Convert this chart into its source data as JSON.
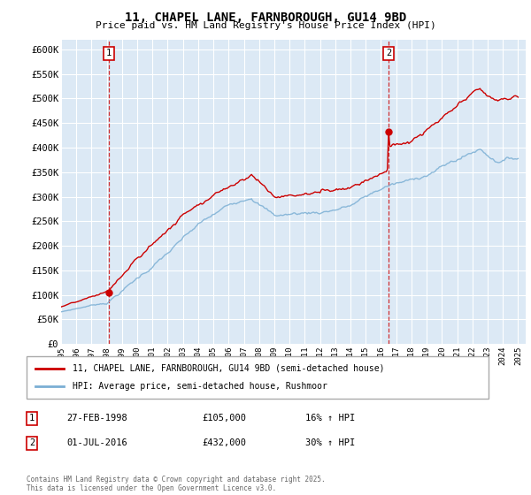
{
  "title": "11, CHAPEL LANE, FARNBOROUGH, GU14 9BD",
  "subtitle": "Price paid vs. HM Land Registry's House Price Index (HPI)",
  "ylabel_ticks": [
    "£0",
    "£50K",
    "£100K",
    "£150K",
    "£200K",
    "£250K",
    "£300K",
    "£350K",
    "£400K",
    "£450K",
    "£500K",
    "£550K",
    "£600K"
  ],
  "ytick_vals": [
    0,
    50000,
    100000,
    150000,
    200000,
    250000,
    300000,
    350000,
    400000,
    450000,
    500000,
    550000,
    600000
  ],
  "ylim": [
    0,
    620000
  ],
  "xlim_start": 1995.0,
  "xlim_end": 2025.5,
  "fig_bg_color": "#ffffff",
  "plot_bg_color": "#dce9f5",
  "grid_color": "#ffffff",
  "red_line_color": "#cc0000",
  "blue_line_color": "#7bafd4",
  "marker1_x": 1998.15,
  "marker1_y": 105000,
  "marker2_x": 2016.5,
  "marker2_y": 432000,
  "marker1_label": "1",
  "marker2_label": "2",
  "marker1_date": "27-FEB-1998",
  "marker1_price": "£105,000",
  "marker1_hpi": "16% ↑ HPI",
  "marker2_date": "01-JUL-2016",
  "marker2_price": "£432,000",
  "marker2_hpi": "30% ↑ HPI",
  "legend_line1": "11, CHAPEL LANE, FARNBOROUGH, GU14 9BD (semi-detached house)",
  "legend_line2": "HPI: Average price, semi-detached house, Rushmoor",
  "footer": "Contains HM Land Registry data © Crown copyright and database right 2025.\nThis data is licensed under the Open Government Licence v3.0.",
  "tick_years": [
    1995,
    1996,
    1997,
    1998,
    1999,
    2000,
    2001,
    2002,
    2003,
    2004,
    2005,
    2006,
    2007,
    2008,
    2009,
    2010,
    2011,
    2012,
    2013,
    2014,
    2015,
    2016,
    2017,
    2018,
    2019,
    2020,
    2021,
    2022,
    2023,
    2024,
    2025
  ]
}
